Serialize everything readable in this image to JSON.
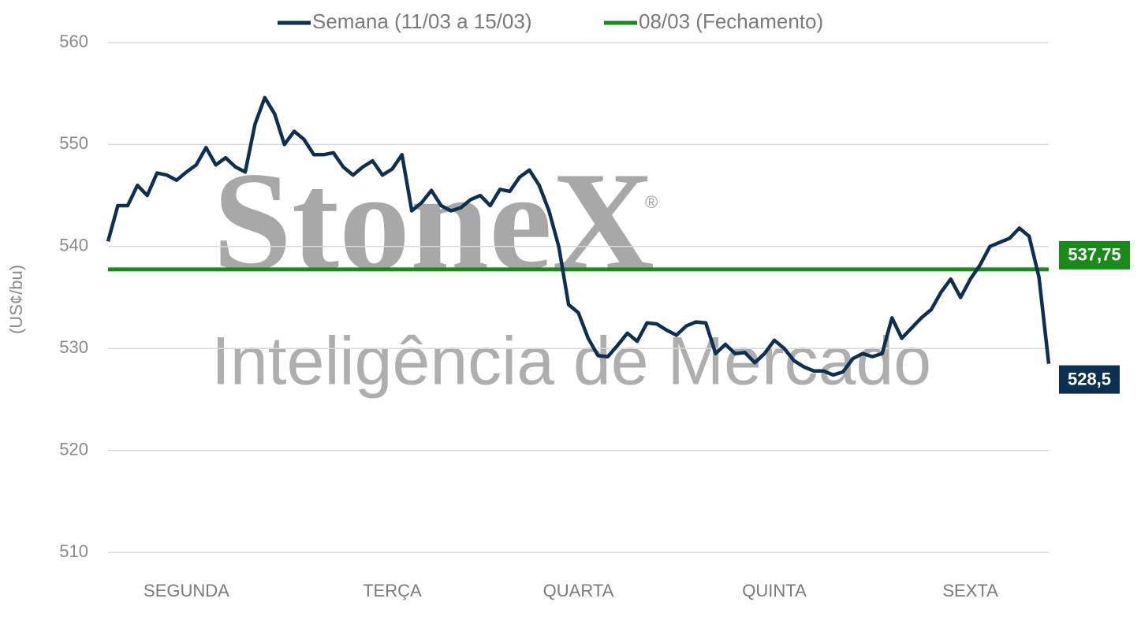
{
  "chart_data": {
    "type": "line",
    "y_label": "(US¢/bu)",
    "watermark": {
      "logo": "StoneX",
      "mark": "®",
      "tagline": "Inteligência de Mercado"
    },
    "categories": [
      null,
      null,
      null,
      null,
      null,
      null,
      null,
      null,
      "SEGUNDA",
      null,
      null,
      null,
      null,
      null,
      null,
      null,
      null,
      null,
      null,
      null,
      null,
      null,
      null,
      null,
      null,
      null,
      null,
      null,
      null,
      "TERÇA",
      null,
      null,
      null,
      null,
      null,
      null,
      null,
      null,
      null,
      null,
      null,
      null,
      null,
      null,
      null,
      null,
      null,
      null,
      "QUARTA",
      null,
      null,
      null,
      null,
      null,
      null,
      null,
      null,
      null,
      null,
      null,
      null,
      null,
      null,
      null,
      null,
      null,
      null,
      null,
      "QUINTA",
      null,
      null,
      null,
      null,
      null,
      null,
      null,
      null,
      null,
      null,
      null,
      null,
      null,
      null,
      null,
      null,
      null,
      null,
      null,
      "SEXTA",
      null,
      null,
      null,
      null,
      null,
      null,
      null,
      null
    ],
    "series": [
      {
        "name": "Semana (11/03 a 15/03)",
        "color": "#0d2f52",
        "values": [
          540.5,
          544,
          544,
          546,
          545,
          547.2,
          547,
          546.5,
          547.3,
          548,
          549.7,
          548,
          548.7,
          547.8,
          547.3,
          552,
          554.6,
          553,
          550,
          551.3,
          550.5,
          549,
          549,
          549.2,
          547.8,
          547,
          547.8,
          548.4,
          547,
          547.6,
          549,
          543.5,
          544.3,
          545.5,
          544,
          543.5,
          543.8,
          544.6,
          545,
          544,
          545.6,
          545.4,
          546.8,
          547.5,
          546,
          543.5,
          540,
          534.3,
          533.5,
          531,
          529.3,
          529.2,
          530.3,
          531.5,
          530.7,
          532.5,
          532.4,
          531.8,
          531.3,
          532.2,
          532.6,
          532.5,
          529.5,
          530.4,
          529.5,
          529.6,
          528.6,
          529.5,
          530.8,
          530,
          528.8,
          528.2,
          527.8,
          527.8,
          527.4,
          527.7,
          529,
          529.5,
          529.2,
          529.5,
          533,
          531,
          532,
          533,
          533.8,
          535.5,
          536.8,
          535,
          536.8,
          538.2,
          540,
          540.4,
          540.8,
          541.8,
          541,
          537,
          528.5
        ],
        "value_labels": [
          null,
          null,
          null,
          null,
          null,
          null,
          null,
          null,
          null,
          null,
          null,
          null,
          null,
          null,
          null,
          null,
          null,
          null,
          null,
          null,
          null,
          null,
          null,
          null,
          null,
          null,
          null,
          null,
          null,
          null,
          null,
          null,
          null,
          null,
          null,
          null,
          null,
          null,
          null,
          null,
          null,
          null,
          null,
          null,
          null,
          null,
          null,
          null,
          null,
          null,
          null,
          null,
          null,
          null,
          null,
          null,
          null,
          null,
          null,
          null,
          null,
          null,
          null,
          null,
          null,
          null,
          null,
          null,
          null,
          null,
          null,
          null,
          null,
          null,
          null,
          null,
          null,
          null,
          null,
          null,
          null,
          null,
          null,
          null,
          null,
          null,
          null,
          null,
          null,
          null,
          null,
          null,
          null,
          null,
          null,
          null,
          "528,5"
        ]
      },
      {
        "name": "08/03 (Fechamento)",
        "color": "#1a8a1a",
        "values": [
          537.75,
          537.75,
          537.75,
          537.75,
          537.75,
          537.75,
          537.75,
          537.75,
          537.75,
          537.75,
          537.75,
          537.75,
          537.75,
          537.75,
          537.75,
          537.75,
          537.75,
          537.75,
          537.75,
          537.75,
          537.75,
          537.75,
          537.75,
          537.75,
          537.75,
          537.75,
          537.75,
          537.75,
          537.75,
          537.75,
          537.75,
          537.75,
          537.75,
          537.75,
          537.75,
          537.75,
          537.75,
          537.75,
          537.75,
          537.75,
          537.75,
          537.75,
          537.75,
          537.75,
          537.75,
          537.75,
          537.75,
          537.75,
          537.75,
          537.75,
          537.75,
          537.75,
          537.75,
          537.75,
          537.75,
          537.75,
          537.75,
          537.75,
          537.75,
          537.75,
          537.75,
          537.75,
          537.75,
          537.75,
          537.75,
          537.75,
          537.75,
          537.75,
          537.75,
          537.75,
          537.75,
          537.75,
          537.75,
          537.75,
          537.75,
          537.75,
          537.75,
          537.75,
          537.75,
          537.75,
          537.75,
          537.75,
          537.75,
          537.75,
          537.75,
          537.75,
          537.75,
          537.75,
          537.75,
          537.75,
          537.75,
          537.75,
          537.75,
          537.75,
          537.75,
          537.75,
          537.75
        ],
        "value_labels": [
          null,
          null,
          null,
          null,
          null,
          null,
          null,
          null,
          null,
          null,
          null,
          null,
          null,
          null,
          null,
          null,
          null,
          null,
          null,
          null,
          null,
          null,
          null,
          null,
          null,
          null,
          null,
          null,
          null,
          null,
          null,
          null,
          null,
          null,
          null,
          null,
          null,
          null,
          null,
          null,
          null,
          null,
          null,
          null,
          null,
          null,
          null,
          null,
          null,
          null,
          null,
          null,
          null,
          null,
          null,
          null,
          null,
          null,
          null,
          null,
          null,
          null,
          null,
          null,
          null,
          null,
          null,
          null,
          null,
          null,
          null,
          null,
          null,
          null,
          null,
          null,
          null,
          null,
          null,
          null,
          null,
          null,
          null,
          null,
          null,
          null,
          null,
          null,
          null,
          null,
          null,
          null,
          null,
          null,
          null,
          null,
          "537,75"
        ]
      }
    ],
    "ylim": [
      510,
      560
    ],
    "yticks": [
      510,
      520,
      530,
      540,
      550,
      560
    ],
    "grid": true,
    "legend": "top"
  }
}
